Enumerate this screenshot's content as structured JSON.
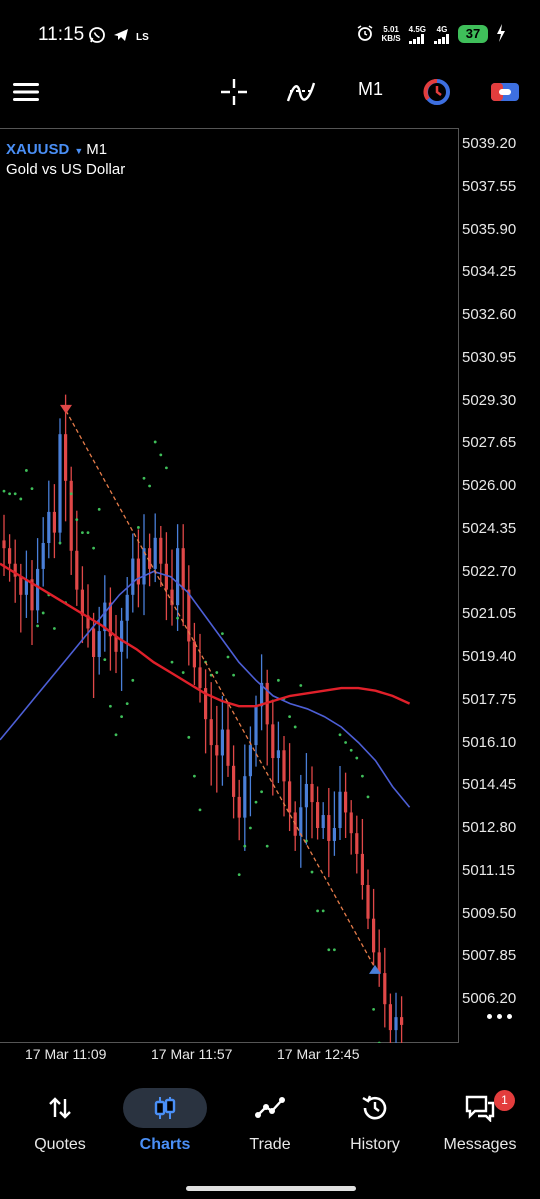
{
  "status_bar": {
    "time": "11:15",
    "left_icons": [
      "whatsapp-icon",
      "telegram-icon",
      "ls-icon"
    ],
    "ls_text": "LS",
    "net_speed_value": "5.01",
    "net_speed_unit": "KB/S",
    "sig1_label": "4.5G",
    "sig2_label": "4G",
    "battery": "37"
  },
  "toolbar": {
    "icons": [
      "menu-icon",
      "crosshair-icon",
      "indicators-icon",
      "timeframe",
      "objects-icon",
      "trade-icon"
    ],
    "timeframe": "M1"
  },
  "chart": {
    "symbol": "XAUUSD",
    "timeframe": "M1",
    "description": "Gold vs US Dollar",
    "price_ticks": [
      "5039.20",
      "5037.55",
      "5035.90",
      "5034.25",
      "5032.60",
      "5030.95",
      "5029.30",
      "5027.65",
      "5026.00",
      "5024.35",
      "5022.70",
      "5021.05",
      "5019.40",
      "5017.75",
      "5016.10",
      "5014.45",
      "5012.80",
      "5011.15",
      "5009.50",
      "5007.85",
      "5006.20"
    ],
    "time_ticks": [
      "17 Mar 11:09",
      "17 Mar 11:57",
      "17 Mar 12:45"
    ],
    "colors": {
      "bull": "#4a7fd8",
      "bear": "#e04848",
      "ma_red": "#e0202a",
      "ma_blue": "#4d5fd6",
      "sar": "#3fbf5a",
      "trend": "#e67c4a"
    }
  },
  "chart_data": {
    "type": "candlestick",
    "symbol": "XAUUSD",
    "timeframe": "M1",
    "ylim": [
      5005.0,
      5040.0
    ],
    "x_ticks": [
      "17 Mar 11:09",
      "17 Mar 11:57",
      "17 Mar 12:45"
    ],
    "closes": [
      5023.6,
      5023.0,
      5022.5,
      5021.8,
      5022.4,
      5021.2,
      5022.8,
      5023.8,
      5025.0,
      5024.2,
      5028.0,
      5026.2,
      5023.5,
      5022.0,
      5021.0,
      5020.5,
      5019.4,
      5020.4,
      5021.5,
      5020.2,
      5019.6,
      5020.8,
      5021.8,
      5023.2,
      5022.2,
      5023.6,
      5022.8,
      5024.0,
      5023.0,
      5022.0,
      5021.4,
      5023.6,
      5022.0,
      5020.0,
      5019.0,
      5018.2,
      5017.0,
      5016.0,
      5015.6,
      5016.6,
      5015.2,
      5014.0,
      5013.2,
      5014.8,
      5016.0,
      5017.5,
      5018.4,
      5016.8,
      5015.5,
      5015.8,
      5014.6,
      5013.4,
      5012.5,
      5013.6,
      5014.5,
      5013.8,
      5012.8,
      5013.3,
      5012.3,
      5012.8,
      5014.2,
      5013.4,
      5012.6,
      5011.8,
      5010.6,
      5009.3,
      5008.0,
      5007.2,
      5006.0,
      5005.0,
      5005.5,
      5005.2
    ],
    "ma_slow": [
      5023.0,
      5022.6,
      5022.2,
      5021.8,
      5021.4,
      5021.0,
      5020.6,
      5020.1,
      5019.7,
      5019.2,
      5018.8,
      5018.4,
      5018.0,
      5017.7,
      5017.5,
      5017.5,
      5017.7,
      5017.9,
      5018.0,
      5018.1,
      5018.2,
      5018.2,
      5018.1,
      5017.9,
      5017.6
    ],
    "ma_fast": [
      5016.2,
      5017.0,
      5017.8,
      5018.6,
      5019.4,
      5020.2,
      5021.0,
      5021.8,
      5022.4,
      5022.7,
      5022.5,
      5021.9,
      5021.0,
      5020.1,
      5019.2,
      5018.5,
      5017.9,
      5017.6,
      5017.4,
      5017.1,
      5016.7,
      5016.1,
      5015.4,
      5014.4,
      5013.6
    ],
    "signals": [
      {
        "type": "sell",
        "price": 5028.9
      },
      {
        "type": "buy",
        "price": 5007.4
      }
    ]
  },
  "nav": [
    {
      "label": "Quotes",
      "icon": "quotes-icon"
    },
    {
      "label": "Charts",
      "icon": "charts-icon",
      "active": true
    },
    {
      "label": "Trade",
      "icon": "trade-line-icon"
    },
    {
      "label": "History",
      "icon": "history-icon"
    },
    {
      "label": "Messages",
      "icon": "messages-icon",
      "badge": "1"
    }
  ]
}
